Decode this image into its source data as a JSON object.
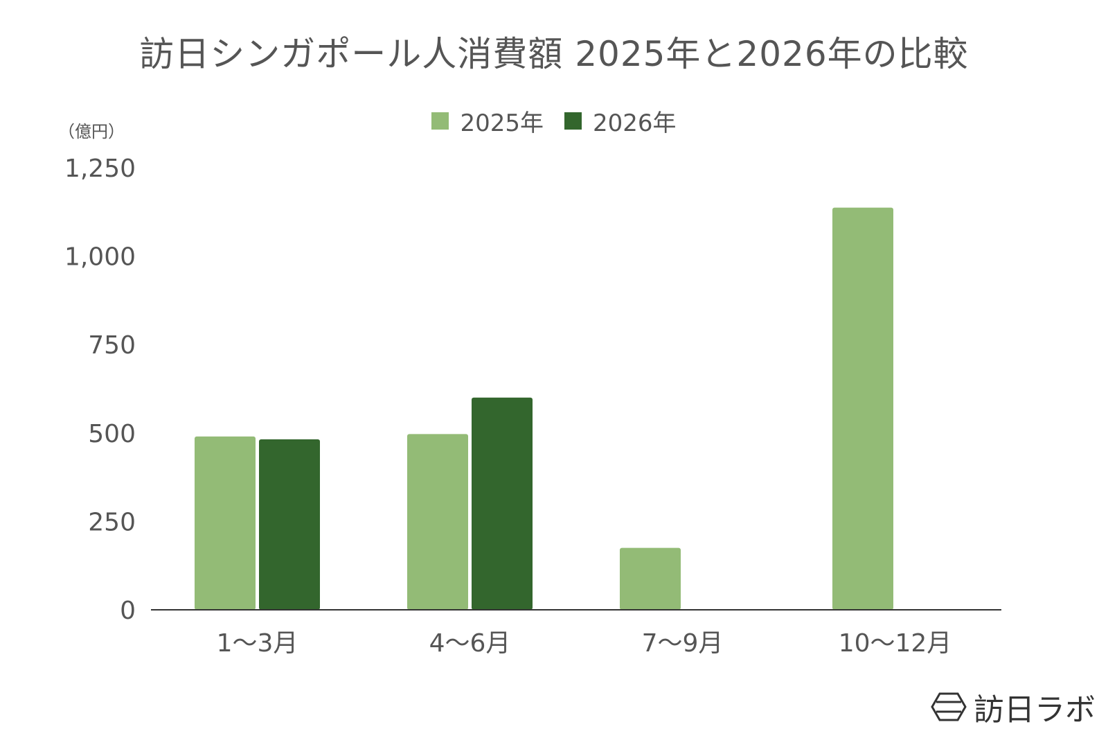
{
  "chart_data": {
    "type": "bar",
    "title": "訪日シンガポール人消費額 2025年と2026年の比較",
    "unit_label": "（億円）",
    "categories": [
      "1〜3月",
      "4〜6月",
      "7〜9月",
      "10〜12月"
    ],
    "series": [
      {
        "name": "2025年",
        "color": "#93bb76",
        "values": [
          490,
          497,
          175,
          1137
        ]
      },
      {
        "name": "2026年",
        "color": "#33662d",
        "values": [
          482,
          600,
          null,
          null
        ]
      }
    ],
    "yticks": [
      "0",
      "250",
      "500",
      "750",
      "1,000",
      "1,250"
    ],
    "ytick_values": [
      0,
      250,
      500,
      750,
      1000,
      1250
    ],
    "ylim": [
      0,
      1250
    ],
    "grid": false,
    "legend": "top-center"
  },
  "watermark": {
    "text": "訪日ラボ",
    "icon": "hexagon-logo-icon"
  }
}
